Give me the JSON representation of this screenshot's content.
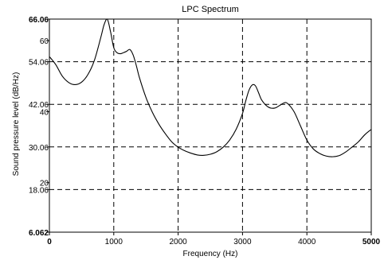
{
  "chart_data": {
    "type": "line",
    "title": "LPC Spectrum",
    "xlabel": "Frequency (Hz)",
    "ylabel": "Sound pressure level (dB/Hz)",
    "xlim": [
      0,
      5000
    ],
    "ylim": [
      6.062,
      66.06
    ],
    "grid": true,
    "legend": "none",
    "line_color": "#000000",
    "x_ticks": [
      {
        "value": 0,
        "label": "0",
        "bold": true
      },
      {
        "value": 1000,
        "label": "1000",
        "bold": false
      },
      {
        "value": 2000,
        "label": "2000",
        "bold": false
      },
      {
        "value": 3000,
        "label": "3000",
        "bold": false
      },
      {
        "value": 4000,
        "label": "4000",
        "bold": false
      },
      {
        "value": 5000,
        "label": "5000",
        "bold": true
      }
    ],
    "y_ticks": [
      {
        "value": 66.06,
        "label": "66.06",
        "bold": true
      },
      {
        "value": 60,
        "label": "60",
        "bold": false
      },
      {
        "value": 54.06,
        "label": "54.06",
        "bold": false
      },
      {
        "value": 42.06,
        "label": "42.06",
        "bold": false
      },
      {
        "value": 40,
        "label": "40",
        "bold": false
      },
      {
        "value": 30.06,
        "label": "30.06",
        "bold": false
      },
      {
        "value": 20,
        "label": "20",
        "bold": false
      },
      {
        "value": 18.06,
        "label": "18.06",
        "bold": false
      },
      {
        "value": 6.062,
        "label": "6.062",
        "bold": true
      }
    ],
    "gridlines_x": [
      1000,
      2000,
      3000,
      4000
    ],
    "gridlines_y": [
      54.06,
      42.06,
      30.06,
      18.06
    ],
    "series": [
      {
        "x": [
          0,
          100,
          200,
          300,
          400,
          500,
          600,
          700,
          800,
          850,
          900,
          950,
          1000,
          1050,
          1100,
          1150,
          1200,
          1250,
          1300,
          1350,
          1400,
          1500,
          1600,
          1700,
          1800,
          1900,
          2000,
          2100,
          2200,
          2300,
          2400,
          2500,
          2600,
          2700,
          2800,
          2900,
          3000,
          3050,
          3100,
          3150,
          3200,
          3250,
          3300,
          3400,
          3500,
          3600,
          3650,
          3700,
          3800,
          3900,
          4000,
          4100,
          4200,
          4300,
          4400,
          4500,
          4600,
          4700,
          4800,
          4900,
          5000
        ],
        "y": [
          55.5,
          53.2,
          50.0,
          48.2,
          47.6,
          48.3,
          50.5,
          54.5,
          61.0,
          64.5,
          66.0,
          62.5,
          58.0,
          56.6,
          56.3,
          56.6,
          57.0,
          57.5,
          56.0,
          53.0,
          49.5,
          44.0,
          39.8,
          36.5,
          33.8,
          31.5,
          30.0,
          29.0,
          28.3,
          27.8,
          27.7,
          28.0,
          28.7,
          30.0,
          32.0,
          35.0,
          39.5,
          43.0,
          46.0,
          47.5,
          47.3,
          45.3,
          43.2,
          41.3,
          41.0,
          42.0,
          42.5,
          42.3,
          40.0,
          36.0,
          32.0,
          29.5,
          28.2,
          27.5,
          27.3,
          27.6,
          28.6,
          30.0,
          31.5,
          33.5,
          35.0
        ]
      }
    ]
  }
}
